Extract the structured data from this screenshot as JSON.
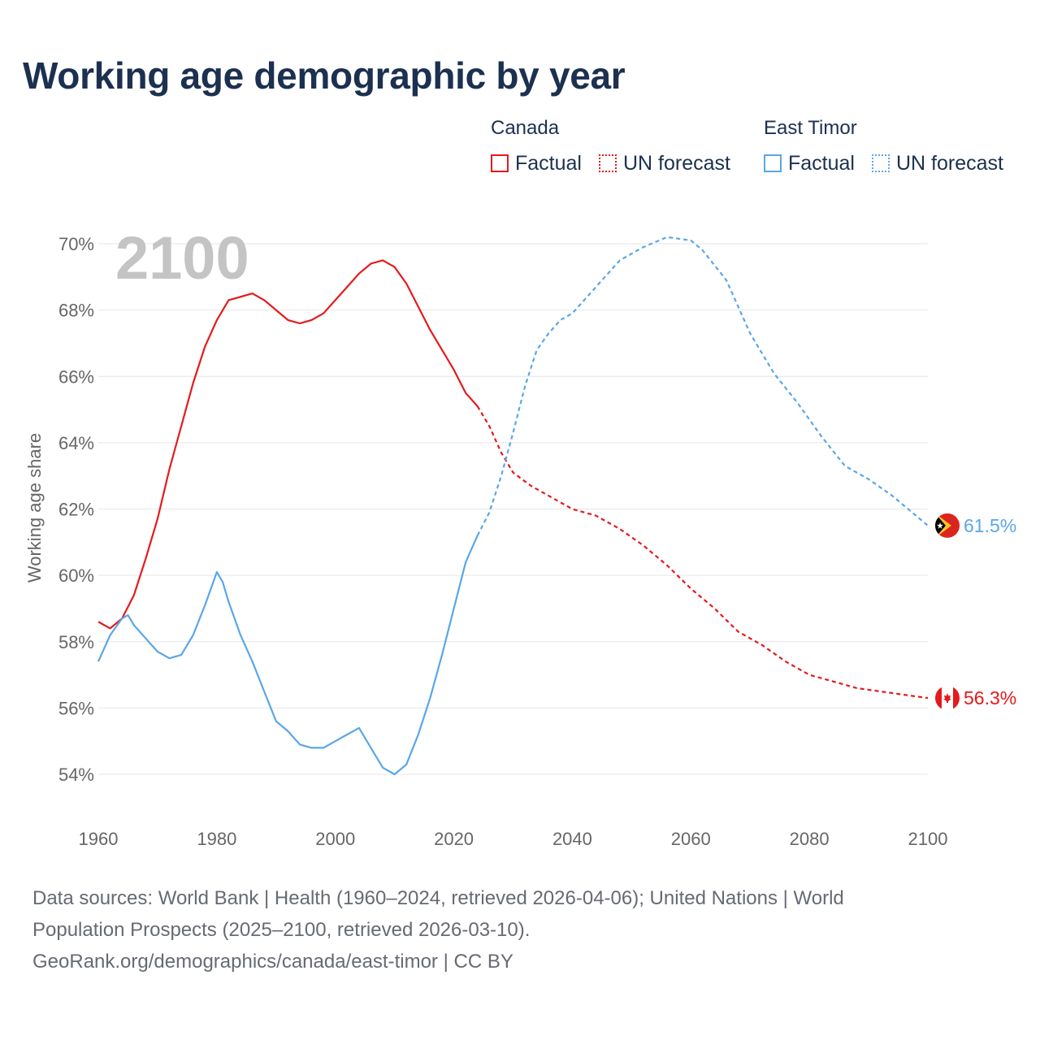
{
  "title": "Working age demographic by year",
  "year_overlay": "2100",
  "legend": {
    "groups": [
      {
        "name": "Canada",
        "color": "#e41a1c",
        "factual_label": "Factual",
        "forecast_label": "UN forecast"
      },
      {
        "name": "East Timor",
        "color": "#5aa6e8",
        "factual_label": "Factual",
        "forecast_label": "UN forecast"
      }
    ]
  },
  "end_labels": {
    "east_timor": "61.5%",
    "canada": "56.3%"
  },
  "sources": {
    "line1": "Data sources: World Bank | Health (1960–2024, retrieved 2026-04-06); United Nations | World",
    "line2": "Population Prospects (2025–2100, retrieved 2026-03-10).",
    "line3": "GeoRank.org/demographics/canada/east-timor | CC BY"
  },
  "chart_data": {
    "type": "line",
    "title": "Working age demographic by year",
    "xlabel": "",
    "ylabel": "Working age share",
    "xlim": [
      1960,
      2100
    ],
    "ylim": [
      53,
      70.5
    ],
    "x_ticks": [
      1960,
      1980,
      2000,
      2020,
      2040,
      2060,
      2080,
      2100
    ],
    "y_ticks": [
      54,
      56,
      58,
      60,
      62,
      64,
      66,
      68,
      70
    ],
    "y_tick_format": "%",
    "factual_until": 2024,
    "grid": true,
    "series": [
      {
        "name": "Canada",
        "color": "#e41a1c",
        "points": [
          [
            1960,
            58.6
          ],
          [
            1962,
            58.4
          ],
          [
            1964,
            58.7
          ],
          [
            1966,
            59.4
          ],
          [
            1968,
            60.5
          ],
          [
            1970,
            61.7
          ],
          [
            1972,
            63.2
          ],
          [
            1974,
            64.5
          ],
          [
            1976,
            65.8
          ],
          [
            1978,
            66.9
          ],
          [
            1980,
            67.7
          ],
          [
            1982,
            68.3
          ],
          [
            1984,
            68.4
          ],
          [
            1986,
            68.5
          ],
          [
            1988,
            68.3
          ],
          [
            1990,
            68.0
          ],
          [
            1992,
            67.7
          ],
          [
            1994,
            67.6
          ],
          [
            1996,
            67.7
          ],
          [
            1998,
            67.9
          ],
          [
            2000,
            68.3
          ],
          [
            2002,
            68.7
          ],
          [
            2004,
            69.1
          ],
          [
            2006,
            69.4
          ],
          [
            2008,
            69.5
          ],
          [
            2010,
            69.3
          ],
          [
            2012,
            68.8
          ],
          [
            2014,
            68.1
          ],
          [
            2016,
            67.4
          ],
          [
            2018,
            66.8
          ],
          [
            2020,
            66.2
          ],
          [
            2022,
            65.5
          ],
          [
            2024,
            65.1
          ],
          [
            2026,
            64.5
          ],
          [
            2028,
            63.7
          ],
          [
            2030,
            63.1
          ],
          [
            2033,
            62.7
          ],
          [
            2036,
            62.4
          ],
          [
            2040,
            62.0
          ],
          [
            2044,
            61.8
          ],
          [
            2048,
            61.4
          ],
          [
            2052,
            60.9
          ],
          [
            2056,
            60.3
          ],
          [
            2060,
            59.6
          ],
          [
            2064,
            59.0
          ],
          [
            2068,
            58.3
          ],
          [
            2072,
            57.9
          ],
          [
            2076,
            57.4
          ],
          [
            2080,
            57.0
          ],
          [
            2084,
            56.8
          ],
          [
            2088,
            56.6
          ],
          [
            2092,
            56.5
          ],
          [
            2096,
            56.4
          ],
          [
            2100,
            56.3
          ]
        ]
      },
      {
        "name": "East Timor",
        "color": "#5aa6e8",
        "points": [
          [
            1960,
            57.4
          ],
          [
            1962,
            58.2
          ],
          [
            1964,
            58.7
          ],
          [
            1965,
            58.8
          ],
          [
            1966,
            58.5
          ],
          [
            1968,
            58.1
          ],
          [
            1970,
            57.7
          ],
          [
            1972,
            57.5
          ],
          [
            1974,
            57.6
          ],
          [
            1976,
            58.2
          ],
          [
            1978,
            59.1
          ],
          [
            1980,
            60.1
          ],
          [
            1981,
            59.8
          ],
          [
            1982,
            59.2
          ],
          [
            1984,
            58.2
          ],
          [
            1986,
            57.4
          ],
          [
            1988,
            56.5
          ],
          [
            1990,
            55.6
          ],
          [
            1992,
            55.3
          ],
          [
            1994,
            54.9
          ],
          [
            1996,
            54.8
          ],
          [
            1998,
            54.8
          ],
          [
            2000,
            55.0
          ],
          [
            2002,
            55.2
          ],
          [
            2004,
            55.4
          ],
          [
            2006,
            54.8
          ],
          [
            2008,
            54.2
          ],
          [
            2010,
            54.0
          ],
          [
            2012,
            54.3
          ],
          [
            2014,
            55.2
          ],
          [
            2016,
            56.3
          ],
          [
            2018,
            57.6
          ],
          [
            2020,
            59.0
          ],
          [
            2022,
            60.4
          ],
          [
            2024,
            61.2
          ],
          [
            2026,
            61.9
          ],
          [
            2028,
            63.0
          ],
          [
            2030,
            64.3
          ],
          [
            2032,
            65.7
          ],
          [
            2034,
            66.8
          ],
          [
            2036,
            67.3
          ],
          [
            2038,
            67.7
          ],
          [
            2040,
            67.9
          ],
          [
            2044,
            68.7
          ],
          [
            2048,
            69.5
          ],
          [
            2052,
            69.9
          ],
          [
            2056,
            70.2
          ],
          [
            2060,
            70.1
          ],
          [
            2062,
            69.8
          ],
          [
            2066,
            68.9
          ],
          [
            2070,
            67.3
          ],
          [
            2074,
            66.1
          ],
          [
            2078,
            65.2
          ],
          [
            2082,
            64.2
          ],
          [
            2086,
            63.3
          ],
          [
            2090,
            62.9
          ],
          [
            2094,
            62.4
          ],
          [
            2098,
            61.8
          ],
          [
            2100,
            61.5
          ]
        ]
      }
    ]
  }
}
